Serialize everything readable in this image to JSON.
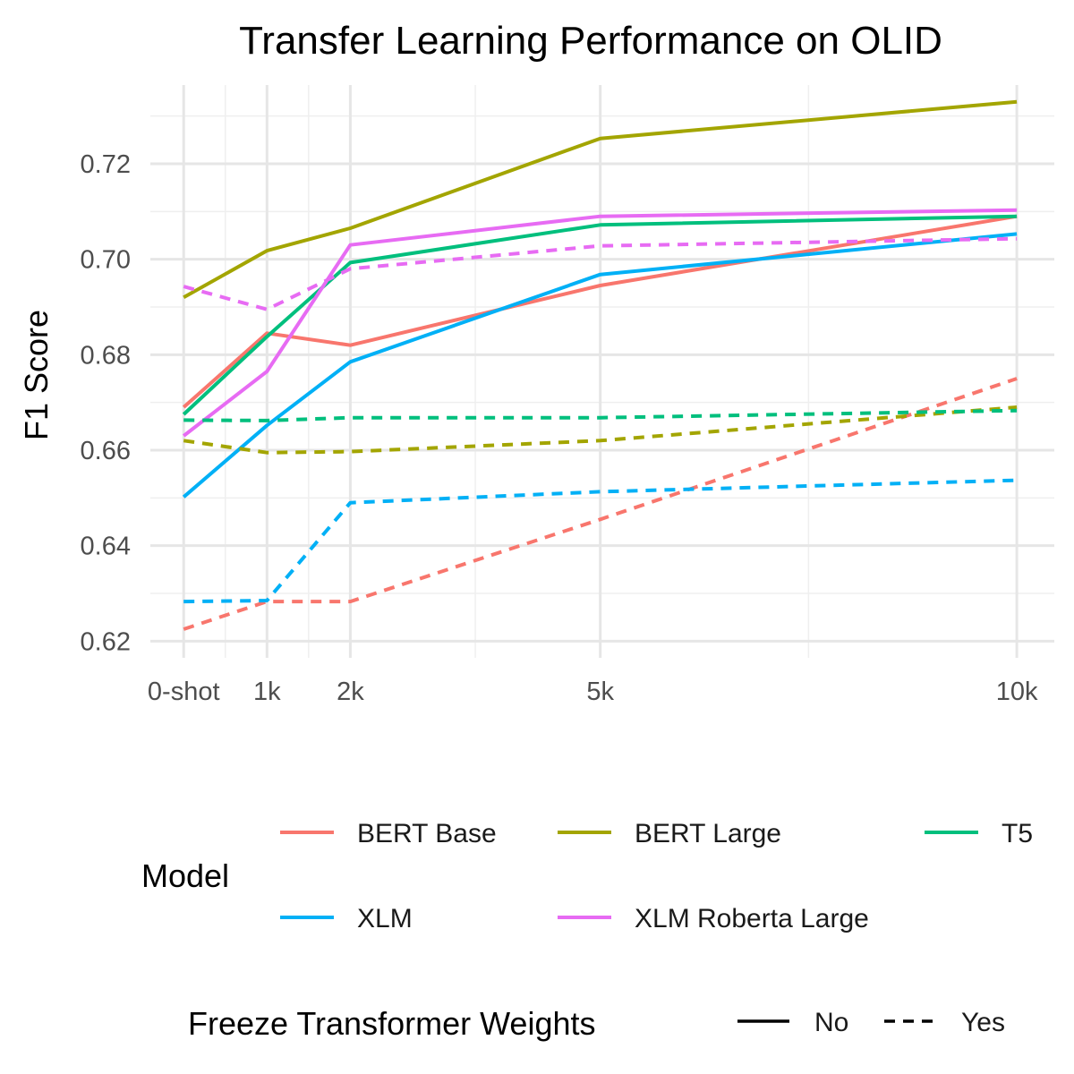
{
  "chart_data": {
    "type": "line",
    "title": "Transfer Learning Performance on OLID",
    "xlabel": "",
    "ylabel": "F1 Score",
    "x": [
      0,
      1,
      2,
      5,
      10
    ],
    "x_tick_labels": [
      "0-shot",
      "1k",
      "2k",
      "5k",
      "10k"
    ],
    "xlim": [
      -0.4,
      10.45
    ],
    "y_ticks": [
      0.62,
      0.64,
      0.66,
      0.68,
      0.7,
      0.72
    ],
    "y_tick_labels": [
      "0.62",
      "0.64",
      "0.66",
      "0.68",
      "0.70",
      "0.72"
    ],
    "ylim": [
      0.6165,
      0.7365
    ],
    "grid": true,
    "legend_position": "bottom",
    "color_legend_title": "Model",
    "linetype_legend_title": "Freeze Transformer Weights",
    "linetype_legend": [
      {
        "label": "No",
        "dash": "solid"
      },
      {
        "label": "Yes",
        "dash": "dashed"
      }
    ],
    "models": [
      {
        "name": "BERT Base",
        "color": "#F8766D"
      },
      {
        "name": "BERT Large",
        "color": "#A3A500"
      },
      {
        "name": "T5",
        "color": "#00BF7D"
      },
      {
        "name": "XLM",
        "color": "#00B0F6"
      },
      {
        "name": "XLM Roberta Large",
        "color": "#E76BF3"
      }
    ],
    "series": [
      {
        "model": "BERT Base",
        "freeze": "No",
        "values": [
          0.669,
          0.6845,
          0.682,
          0.6945,
          0.709
        ]
      },
      {
        "model": "BERT Large",
        "freeze": "No",
        "values": [
          0.692,
          0.7018,
          0.7065,
          0.7253,
          0.733
        ]
      },
      {
        "model": "T5",
        "freeze": "No",
        "values": [
          0.6675,
          0.6838,
          0.6993,
          0.7072,
          0.709
        ]
      },
      {
        "model": "XLM",
        "freeze": "No",
        "values": [
          0.6502,
          0.6652,
          0.6785,
          0.6968,
          0.7053
        ]
      },
      {
        "model": "XLM Roberta Large",
        "freeze": "No",
        "values": [
          0.663,
          0.6765,
          0.703,
          0.709,
          0.7103
        ]
      },
      {
        "model": "BERT Base",
        "freeze": "Yes",
        "values": [
          0.6225,
          0.6283,
          0.6283,
          0.6455,
          0.675
        ]
      },
      {
        "model": "BERT Large",
        "freeze": "Yes",
        "values": [
          0.662,
          0.6595,
          0.6597,
          0.662,
          0.669
        ]
      },
      {
        "model": "T5",
        "freeze": "Yes",
        "values": [
          0.6663,
          0.6662,
          0.6668,
          0.6668,
          0.6683
        ]
      },
      {
        "model": "XLM",
        "freeze": "Yes",
        "values": [
          0.6283,
          0.6285,
          0.649,
          0.6513,
          0.6537
        ]
      },
      {
        "model": "XLM Roberta Large",
        "freeze": "Yes",
        "values": [
          0.6943,
          0.6895,
          0.698,
          0.7028,
          0.7043
        ]
      }
    ]
  }
}
